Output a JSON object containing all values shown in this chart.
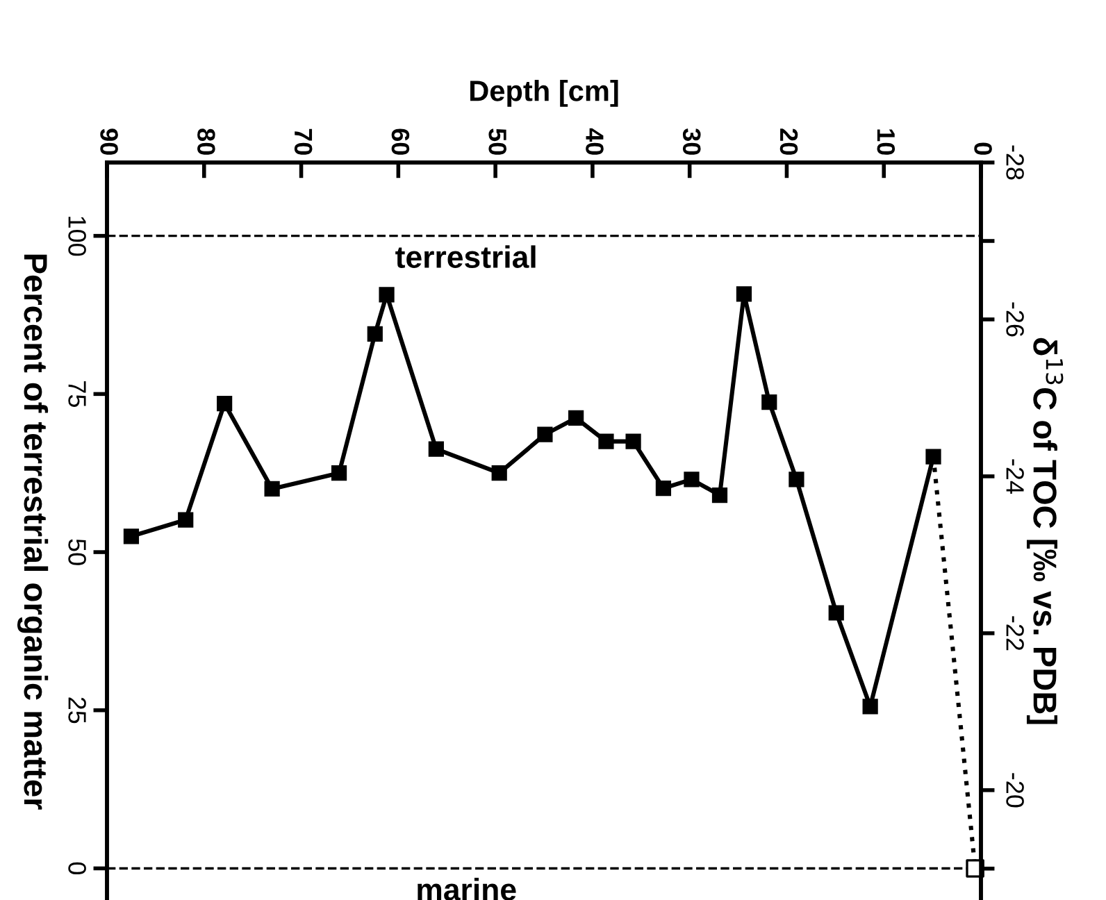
{
  "chart_data": {
    "type": "line",
    "xlabel": "Depth [cm]",
    "ylabel": "Percent of terrestrial organic matter",
    "y2label": "δ$^{13}$C of TOC [‰ vs. PDB]",
    "xlim": [
      90,
      0
    ],
    "xticks": [
      90,
      80,
      70,
      60,
      50,
      40,
      30,
      20,
      10,
      0
    ],
    "ylim": [
      -5,
      111.6
    ],
    "yticks": [
      0,
      25,
      50,
      75,
      100
    ],
    "y2lim": [
      -18.6,
      -28
    ],
    "y2ticks": [
      -28,
      {
        "value": -27,
        "label": null
      },
      -26,
      -24,
      -22,
      -20,
      {
        "value": -19,
        "label": null
      }
    ],
    "series": [
      {
        "color": "#000000",
        "marker": "square",
        "line_style": "solid",
        "x": [
          87.5,
          81.9,
          77.9,
          73.0,
          66.1,
          62.4,
          61.2,
          56.1,
          49.6,
          44.9,
          41.7,
          38.6,
          35.8,
          32.7,
          29.8,
          26.9,
          24.4,
          21.8,
          19.0,
          14.9,
          11.4,
          4.9
        ],
        "values": [
          52.5,
          55.1,
          73.5,
          60.0,
          62.5,
          84.5,
          90.7,
          66.3,
          62.5,
          68.6,
          71.2,
          67.5,
          67.5,
          60.1,
          61.5,
          59.0,
          90.8,
          73.7,
          61.5,
          40.4,
          25.6,
          65.1
        ]
      },
      {
        "color": "#000000",
        "marker": "none",
        "line_style": "dotted",
        "x": [
          4.9,
          0.6
        ],
        "values": [
          65.1,
          0
        ]
      },
      {
        "type": "scatter",
        "color": "#ffffff",
        "marker": "square",
        "x": [
          0.6
        ],
        "values": [
          0
        ]
      }
    ],
    "ref_lines": [
      {
        "axis": "y",
        "value": 100,
        "label": "terrestrial",
        "line_style": "dashed",
        "color": "#000000"
      },
      {
        "axis": "y",
        "value": 0,
        "label": "marine",
        "line_style": "dashed",
        "color": "#000000"
      }
    ],
    "grid": false,
    "legend": false
  }
}
